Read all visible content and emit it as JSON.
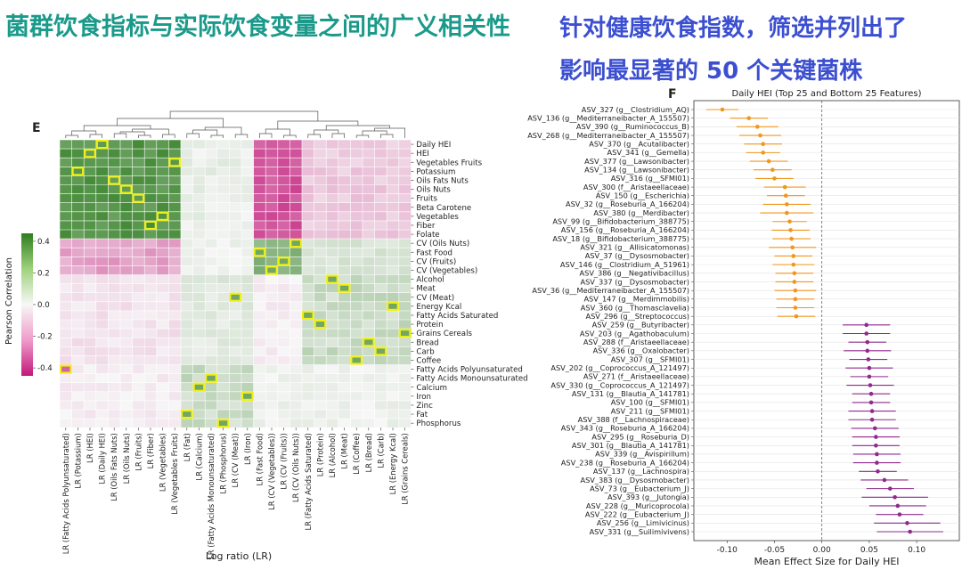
{
  "header": {
    "left_title": "菌群饮食指标与实际饮食变量之间的广义相关性",
    "right_title_line1": "针对健康饮食指数，筛选并列出了",
    "right_title_line2": "影响最显著的 50 个关键菌株"
  },
  "chart_data": [
    {
      "type": "heatmap",
      "panel_label": "E",
      "xlabel": "Log ratio (LR)",
      "colorbar_label": "Pearson Correlation",
      "colorbar_ticks": [
        0.4,
        0.2,
        0.0,
        -0.2,
        -0.4
      ],
      "colorbar_range": [
        -0.45,
        0.45
      ],
      "colors": {
        "positive": "#2e7d1f",
        "negative": "#c2187a",
        "zero": "#f7f7f7",
        "highlight": "#f0f016"
      },
      "columns": [
        "LR (Fatty Acids Polyunsaturated)",
        "LR (Potassium)",
        "LR (HEI)",
        "LR (Daily HEI)",
        "LR (Oils Fats Nuts)",
        "LR (Oils Nuts)",
        "LR (Fruits)",
        "LR (Fiber)",
        "LR (Vegetables)",
        "LR (Vegetables Fruits)",
        "LR (Fat)",
        "LR (Calcium)",
        "LR (Fatty Acids Monounsaturated)",
        "LR (Phosphorus)",
        "LR (CV (Meat))",
        "LR (Iron)",
        "LR (Fast Food)",
        "LR (CV (Vegetables))",
        "LR (CV (Fruits))",
        "LR (CV (Oils Nuts))",
        "LR (Fatty Acids Saturated)",
        "LR (Protein)",
        "LR (Alcohol)",
        "LR (Meat)",
        "LR (Coffee)",
        "LR (Bread)",
        "LR (Carb)",
        "LR (Energy Kcal)",
        "LR (Grains Cereals)"
      ],
      "rows": [
        "Daily HEI",
        "HEI",
        "Vegetables Fruits",
        "Potassium",
        "Oils Fats Nuts",
        "Oils Nuts",
        "Fruits",
        "Beta Carotene",
        "Vegetables",
        "Fiber",
        "Folate",
        "CV (Oils Nuts)",
        "Fast Food",
        "CV (Fruits)",
        "CV (Vegetables)",
        "Alcohol",
        "Meat",
        "CV (Meat)",
        "Energy Kcal",
        "Fatty Acids Saturated",
        "Protein",
        "Grains Cereals",
        "Bread",
        "Carb",
        "Coffee",
        "Fatty Acids Polyunsaturated",
        "Fatty Acids Monounsaturated",
        "Calcium",
        "Iron",
        "Zinc",
        "Fat",
        "Phosphorus"
      ],
      "highlighted_cells": [
        [
          0,
          3
        ],
        [
          1,
          2
        ],
        [
          2,
          9
        ],
        [
          3,
          1
        ],
        [
          4,
          4
        ],
        [
          5,
          5
        ],
        [
          6,
          6
        ],
        [
          8,
          8
        ],
        [
          9,
          7
        ],
        [
          11,
          19
        ],
        [
          12,
          16
        ],
        [
          13,
          18
        ],
        [
          14,
          17
        ],
        [
          15,
          22
        ],
        [
          16,
          23
        ],
        [
          17,
          14
        ],
        [
          18,
          27
        ],
        [
          19,
          20
        ],
        [
          20,
          21
        ],
        [
          21,
          28
        ],
        [
          22,
          25
        ],
        [
          23,
          26
        ],
        [
          24,
          24
        ],
        [
          25,
          0
        ],
        [
          26,
          12
        ],
        [
          27,
          11
        ],
        [
          28,
          15
        ],
        [
          30,
          10
        ],
        [
          31,
          13
        ]
      ]
    },
    {
      "type": "scatter",
      "panel_label": "F",
      "title": "Daily HEI (Top 25 and Bottom 25 Features)",
      "xlabel": "Mean Effect Size for Daily HEI",
      "xlim": [
        -0.135,
        0.145
      ],
      "xticks": [
        -0.1,
        -0.05,
        0.0,
        0.05,
        0.1
      ],
      "xtick_labels": [
        "-0.10",
        "-0.05",
        "0.00",
        "0.05",
        "0.10"
      ],
      "series_colors": {
        "negative": "#f0961e",
        "positive": "#8e2a8c"
      },
      "features": [
        "ASV_327 (g__Clostridium_AQ)",
        "ASV_136 (g__Mediterraneibacter_A_155507)",
        "ASV_390 (g__Ruminococcus_B)",
        "ASV_268 (g__Mediterraneibacter_A_155507)",
        "ASV_370 (g__Acutalibacter)",
        "ASV_341 (g__Gemella)",
        "ASV_377 (g__Lawsonibacter)",
        "ASV_134 (g__Lawsonibacter)",
        "ASV_316 (g__SFMI01)",
        "ASV_300 (f__Aristaeellaceae)",
        "ASV_150 (g__Escherichia)",
        "ASV_32 (g__Roseburia_A_166204)",
        "ASV_380 (g__Merdibacter)",
        "ASV_99 (g__Bifidobacterium_388775)",
        "ASV_156 (g__Roseburia_A_166204)",
        "ASV_18 (g__Bifidobacterium_388775)",
        "ASV_321 (g__Allisicatomonas)",
        "ASV_37 (g__Dysosmobacter)",
        "ASV_146 (g__Clostridium_A_51961)",
        "ASV_386 (g__Negativibacillus)",
        "ASV_337 (g__Dysosmobacter)",
        "ASV_36 (g__Mediterraneibacter_A_155507)",
        "ASV_147 (g__Merdimmobilis)",
        "ASV_360 (g__Thomasclavelia)",
        "ASV_296 (g__Streptococcus)",
        "ASV_259 (g__Butyribacter)",
        "ASV_203 (g__Agathobaculum)",
        "ASV_288 (f__Aristaeellaceae)",
        "ASV_336 (g__Oxalobacter)",
        "ASV_307 (g__SFMI01)",
        "ASV_202 (g__Coprococcus_A_121497)",
        "ASV_271 (f__Aristaeellaceae)",
        "ASV_330 (g__Coprococcus_A_121497)",
        "ASV_131 (g__Blautia_A_141781)",
        "ASV_100 (g__SFMI01)",
        "ASV_211 (g__SFMI01)",
        "ASV_388 (f__Lachnospiraceae)",
        "ASV_343 (g__Roseburia_A_166204)",
        "ASV_295 (g__Roseburia_D)",
        "ASV_301 (g__Blautia_A_141781)",
        "ASV_339 (g__Avispirillum)",
        "ASV_238 (g__Roseburia_A_166204)",
        "ASV_137 (g__Lachnospira)",
        "ASV_383 (g__Dysosmobacter)",
        "ASV_73 (g__Eubacterium_J)",
        "ASV_393 (g__Jutongia)",
        "ASV_228 (g__Muricoprocola)",
        "ASV_222 (g__Eubacterium_J)",
        "ASV_256 (g__Limivicinus)",
        "ASV_331 (g__Suilimivivens)"
      ],
      "values": [
        -0.105,
        -0.077,
        -0.068,
        -0.065,
        -0.062,
        -0.062,
        -0.056,
        -0.052,
        -0.05,
        -0.039,
        -0.038,
        -0.037,
        -0.037,
        -0.034,
        -0.033,
        -0.032,
        -0.031,
        -0.03,
        -0.03,
        -0.029,
        -0.029,
        -0.028,
        -0.028,
        -0.028,
        -0.027,
        0.047,
        0.047,
        0.048,
        0.048,
        0.049,
        0.05,
        0.05,
        0.051,
        0.052,
        0.052,
        0.053,
        0.053,
        0.056,
        0.057,
        0.057,
        0.058,
        0.058,
        0.059,
        0.066,
        0.072,
        0.077,
        0.08,
        0.082,
        0.09,
        0.093
      ],
      "ci_half_width": [
        0.017,
        0.02,
        0.022,
        0.022,
        0.02,
        0.018,
        0.02,
        0.02,
        0.02,
        0.022,
        0.02,
        0.025,
        0.028,
        0.018,
        0.02,
        0.02,
        0.025,
        0.02,
        0.022,
        0.02,
        0.02,
        0.022,
        0.02,
        0.02,
        0.02,
        0.025,
        0.025,
        0.02,
        0.025,
        0.02,
        0.025,
        0.02,
        0.025,
        0.02,
        0.02,
        0.025,
        0.025,
        0.025,
        0.025,
        0.025,
        0.025,
        0.025,
        0.02,
        0.025,
        0.025,
        0.035,
        0.03,
        0.025,
        0.035,
        0.035
      ]
    }
  ]
}
